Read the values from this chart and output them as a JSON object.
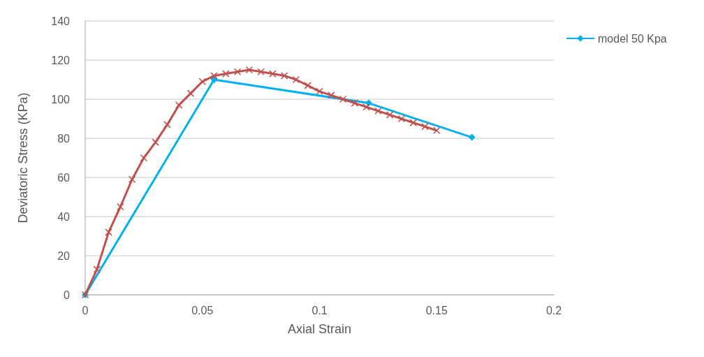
{
  "chart_data": {
    "type": "line",
    "xlabel": "Axial Strain",
    "ylabel": "Deviatoric Stress (KPa)",
    "xlim": [
      0,
      0.2
    ],
    "xticks": [
      0,
      0.05,
      0.1,
      0.15,
      0.2
    ],
    "ylim": [
      0,
      140
    ],
    "yticks": [
      0,
      20,
      40,
      60,
      80,
      100,
      120,
      140
    ],
    "grid": "y",
    "legend": "top right",
    "series": [
      {
        "name": "model 50 Kpa",
        "color": "#00b0f0",
        "marker": "diamond",
        "x": [
          0,
          0.055,
          0.121,
          0.165
        ],
        "values": [
          0,
          110,
          98,
          80.5
        ]
      },
      {
        "color": "#c0504d",
        "marker": "cross",
        "x": [
          0,
          0.005,
          0.01,
          0.015,
          0.02,
          0.025,
          0.03,
          0.035,
          0.04,
          0.045,
          0.05,
          0.055,
          0.06,
          0.065,
          0.07,
          0.075,
          0.08,
          0.085,
          0.09,
          0.095,
          0.1,
          0.105,
          0.11,
          0.115,
          0.12,
          0.125,
          0.13,
          0.135,
          0.14,
          0.145,
          0.15
        ],
        "values": [
          0,
          13,
          32,
          45,
          59,
          70,
          78,
          87,
          97,
          103,
          109,
          112,
          113,
          114,
          115,
          114,
          113,
          112,
          110,
          107,
          104,
          102,
          100,
          98,
          96,
          94,
          92,
          90,
          88,
          86,
          84
        ]
      }
    ]
  }
}
